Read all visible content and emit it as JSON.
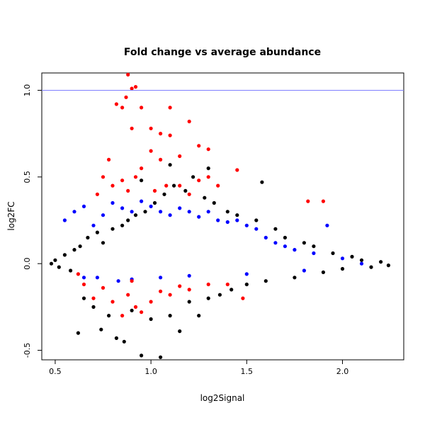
{
  "chart_data": {
    "type": "scatter",
    "title": "Fold change vs average abundance",
    "xlabel": "log2Signal",
    "ylabel": "log2FC",
    "xlim": [
      0.43,
      2.32
    ],
    "ylim": [
      -0.555,
      1.1
    ],
    "x_ticks": [
      "0.5",
      "1.0",
      "1.5",
      "2.0"
    ],
    "x_tick_values": [
      0.5,
      1.0,
      1.5,
      2.0
    ],
    "y_ticks": [
      "-0.5",
      "0.0",
      "0.5",
      "1.0"
    ],
    "y_tick_values": [
      -0.5,
      0.0,
      0.5,
      1.0
    ],
    "reference_line": {
      "y": 1.0,
      "color": "#7f7fff"
    },
    "grid": false,
    "legend": "none",
    "series": [
      {
        "color": "#000000",
        "points": [
          [
            0.48,
            0.0
          ],
          [
            0.5,
            0.02
          ],
          [
            0.52,
            -0.02
          ],
          [
            0.55,
            0.05
          ],
          [
            0.58,
            -0.04
          ],
          [
            0.6,
            0.08
          ],
          [
            0.62,
            -0.4
          ],
          [
            0.63,
            0.1
          ],
          [
            0.65,
            -0.2
          ],
          [
            0.67,
            0.15
          ],
          [
            0.7,
            -0.25
          ],
          [
            0.72,
            0.18
          ],
          [
            0.74,
            -0.38
          ],
          [
            0.75,
            0.12
          ],
          [
            0.78,
            -0.3
          ],
          [
            0.8,
            0.2
          ],
          [
            0.82,
            -0.43
          ],
          [
            0.85,
            0.22
          ],
          [
            0.86,
            -0.45
          ],
          [
            0.88,
            0.25
          ],
          [
            0.9,
            -0.27
          ],
          [
            0.92,
            0.28
          ],
          [
            0.95,
            -0.53
          ],
          [
            0.97,
            0.3
          ],
          [
            1.0,
            -0.32
          ],
          [
            1.02,
            0.35
          ],
          [
            1.05,
            -0.54
          ],
          [
            1.07,
            0.4
          ],
          [
            1.1,
            -0.3
          ],
          [
            1.12,
            0.45
          ],
          [
            1.15,
            -0.39
          ],
          [
            1.18,
            0.42
          ],
          [
            1.2,
            -0.22
          ],
          [
            1.22,
            0.5
          ],
          [
            1.25,
            -0.3
          ],
          [
            1.28,
            0.38
          ],
          [
            1.3,
            -0.2
          ],
          [
            1.33,
            0.35
          ],
          [
            1.36,
            -0.18
          ],
          [
            1.4,
            0.3
          ],
          [
            1.42,
            -0.15
          ],
          [
            1.45,
            0.28
          ],
          [
            1.5,
            -0.12
          ],
          [
            1.55,
            0.25
          ],
          [
            1.58,
            0.47
          ],
          [
            1.6,
            -0.1
          ],
          [
            1.65,
            0.2
          ],
          [
            1.7,
            0.15
          ],
          [
            1.75,
            -0.08
          ],
          [
            1.8,
            0.12
          ],
          [
            1.85,
            0.1
          ],
          [
            1.9,
            -0.05
          ],
          [
            1.95,
            0.06
          ],
          [
            2.0,
            -0.03
          ],
          [
            2.05,
            0.04
          ],
          [
            2.1,
            0.02
          ],
          [
            2.15,
            -0.02
          ],
          [
            2.2,
            0.01
          ],
          [
            2.24,
            -0.01
          ],
          [
            1.1,
            0.57
          ],
          [
            0.95,
            0.48
          ],
          [
            1.3,
            0.55
          ]
        ]
      },
      {
        "color": "#0000ff",
        "points": [
          [
            0.55,
            0.25
          ],
          [
            0.6,
            0.3
          ],
          [
            0.65,
            0.33
          ],
          [
            0.7,
            0.22
          ],
          [
            0.72,
            -0.08
          ],
          [
            0.75,
            0.28
          ],
          [
            0.8,
            0.35
          ],
          [
            0.83,
            -0.1
          ],
          [
            0.85,
            0.32
          ],
          [
            0.9,
            0.3
          ],
          [
            0.95,
            0.36
          ],
          [
            1.0,
            0.33
          ],
          [
            1.05,
            -0.08
          ],
          [
            1.05,
            0.3
          ],
          [
            1.1,
            0.28
          ],
          [
            1.15,
            0.32
          ],
          [
            1.2,
            0.3
          ],
          [
            1.25,
            0.27
          ],
          [
            1.3,
            0.3
          ],
          [
            1.35,
            0.25
          ],
          [
            1.4,
            0.24
          ],
          [
            1.45,
            0.25
          ],
          [
            1.5,
            0.22
          ],
          [
            1.55,
            0.2
          ],
          [
            1.6,
            0.15
          ],
          [
            1.65,
            0.12
          ],
          [
            1.7,
            0.1
          ],
          [
            1.75,
            0.08
          ],
          [
            1.85,
            0.06
          ],
          [
            1.92,
            0.22
          ],
          [
            2.0,
            0.03
          ],
          [
            2.1,
            0.0
          ],
          [
            0.65,
            -0.08
          ],
          [
            0.9,
            -0.09
          ],
          [
            1.2,
            -0.07
          ],
          [
            1.5,
            -0.06
          ],
          [
            1.8,
            -0.04
          ]
        ]
      },
      {
        "color": "#ff0000",
        "points": [
          [
            0.88,
            1.09
          ],
          [
            0.9,
            1.01
          ],
          [
            0.92,
            1.02
          ],
          [
            0.87,
            0.96
          ],
          [
            0.85,
            0.9
          ],
          [
            0.82,
            0.92
          ],
          [
            0.9,
            0.78
          ],
          [
            0.95,
            0.9
          ],
          [
            1.0,
            0.78
          ],
          [
            1.05,
            0.75
          ],
          [
            1.1,
            0.74
          ],
          [
            1.1,
            0.9
          ],
          [
            1.2,
            0.82
          ],
          [
            1.15,
            0.62
          ],
          [
            1.25,
            0.68
          ],
          [
            1.3,
            0.66
          ],
          [
            1.0,
            0.65
          ],
          [
            1.05,
            0.6
          ],
          [
            0.95,
            0.55
          ],
          [
            0.92,
            0.5
          ],
          [
            0.85,
            0.48
          ],
          [
            0.8,
            0.45
          ],
          [
            0.75,
            0.5
          ],
          [
            0.72,
            0.4
          ],
          [
            0.78,
            0.6
          ],
          [
            0.88,
            0.42
          ],
          [
            1.02,
            0.42
          ],
          [
            1.08,
            0.45
          ],
          [
            1.15,
            0.45
          ],
          [
            1.2,
            0.4
          ],
          [
            1.25,
            0.48
          ],
          [
            1.3,
            0.5
          ],
          [
            1.35,
            0.45
          ],
          [
            1.45,
            0.54
          ],
          [
            1.82,
            0.36
          ],
          [
            1.9,
            0.36
          ],
          [
            0.65,
            -0.12
          ],
          [
            0.7,
            -0.2
          ],
          [
            0.75,
            -0.14
          ],
          [
            0.8,
            -0.22
          ],
          [
            0.85,
            -0.3
          ],
          [
            0.88,
            -0.18
          ],
          [
            0.92,
            -0.25
          ],
          [
            0.95,
            -0.28
          ],
          [
            1.0,
            -0.22
          ],
          [
            1.05,
            -0.16
          ],
          [
            1.1,
            -0.18
          ],
          [
            1.15,
            -0.13
          ],
          [
            1.2,
            -0.15
          ],
          [
            1.3,
            -0.12
          ],
          [
            1.4,
            -0.12
          ],
          [
            1.48,
            -0.2
          ],
          [
            0.62,
            -0.06
          ],
          [
            0.9,
            -0.1
          ]
        ]
      }
    ]
  }
}
